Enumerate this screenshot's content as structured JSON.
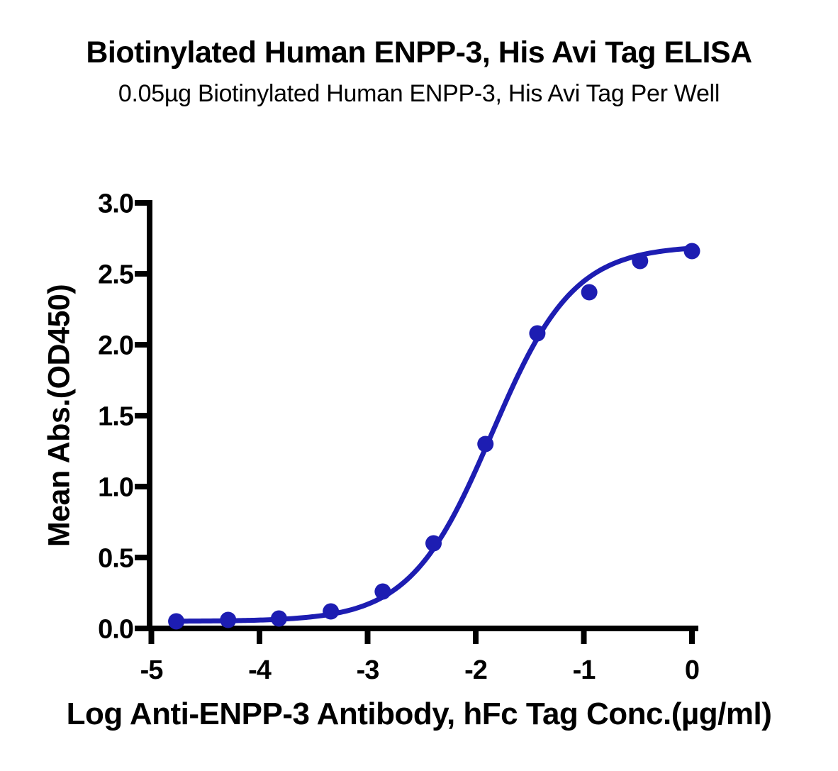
{
  "chart_data": {
    "type": "scatter",
    "title": "Biotinylated Human ENPP-3, His Avi Tag ELISA",
    "subtitle": "0.05µg Biotinylated Human ENPP-3, His Avi Tag Per Well",
    "xlabel": "Log Anti-ENPP-3 Antibody, hFc Tag Conc.(µg/ml)",
    "ylabel": "Mean Abs.(OD450)",
    "xlim": [
      -5,
      0
    ],
    "ylim": [
      0,
      3
    ],
    "grid": false,
    "legend": "none",
    "x_tick_values": [
      -5,
      -4,
      -3,
      -2,
      -1,
      0
    ],
    "x_tick_labels": [
      "-5",
      "-4",
      "-3",
      "-2",
      "-1",
      "0"
    ],
    "y_tick_values": [
      0,
      0.5,
      1,
      1.5,
      2,
      2.5,
      3
    ],
    "y_tick_labels": [
      "0.0",
      "0.5",
      "1.0",
      "1.5",
      "2.0",
      "2.5",
      "3.0"
    ],
    "points": [
      {
        "x": -4.77,
        "y": 0.05
      },
      {
        "x": -4.29,
        "y": 0.06
      },
      {
        "x": -3.82,
        "y": 0.07
      },
      {
        "x": -3.34,
        "y": 0.12
      },
      {
        "x": -2.86,
        "y": 0.26
      },
      {
        "x": -2.39,
        "y": 0.6
      },
      {
        "x": -1.91,
        "y": 1.3
      },
      {
        "x": -1.43,
        "y": 2.08
      },
      {
        "x": -0.95,
        "y": 2.37
      },
      {
        "x": -0.48,
        "y": 2.59
      },
      {
        "x": 0.0,
        "y": 2.66
      }
    ],
    "fit_curve": {
      "model": "4PL",
      "bottom": 0.05,
      "top": 2.7,
      "logEC50": -1.85,
      "hillslope": 1.15,
      "x_range": [
        -4.77,
        0.0
      ]
    },
    "colors": {
      "curve": "#1d1db2",
      "marker": "#1d1db2",
      "axis": "#000000",
      "text": "#000000",
      "background": "#ffffff"
    },
    "marker_style": "filled-circle"
  }
}
